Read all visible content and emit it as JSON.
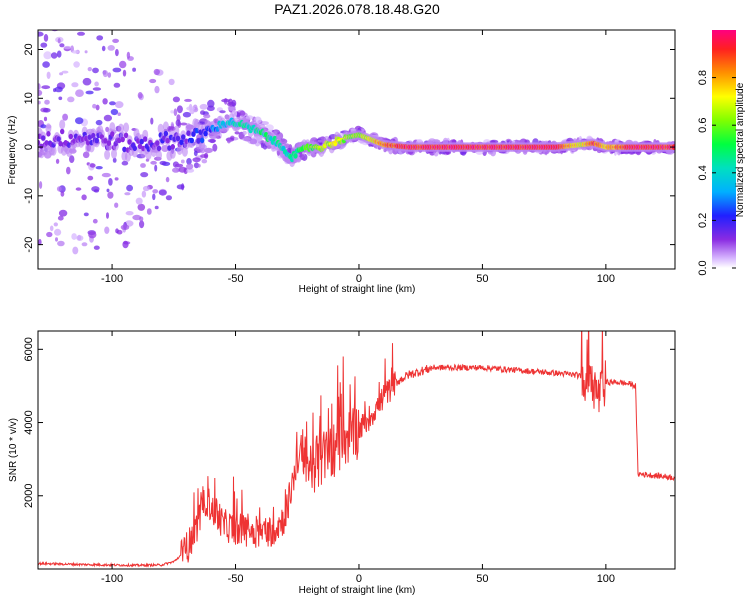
{
  "title": "PAZ1.2026.078.18.48.G20",
  "chart_data": [
    {
      "type": "heatmap",
      "xlabel": "Height of straight line (km)",
      "ylabel": "Frequency (Hz)",
      "xlim": [
        -130,
        128
      ],
      "ylim": [
        -25,
        24
      ],
      "xticks": [
        -100,
        -50,
        0,
        50,
        100
      ],
      "xtick_labels": [
        "-100",
        "-50",
        "0",
        "50",
        "100"
      ],
      "yticks": [
        -20,
        -10,
        0,
        10,
        20
      ],
      "ytick_labels": [
        "-20",
        "-10",
        "0",
        "10",
        "20"
      ],
      "colorbar": {
        "label": "Normalized spectral amplitude",
        "range": [
          0,
          1
        ],
        "ticks": [
          0.0,
          0.2,
          0.4,
          0.6,
          0.8
        ],
        "tick_labels": [
          "0.0",
          "0.2",
          "0.4",
          "0.6",
          "0.8"
        ]
      },
      "ridge_frequency": {
        "x": [
          -130,
          -110,
          -90,
          -75,
          -65,
          -58,
          -54,
          -50,
          -45,
          -40,
          -35,
          -30,
          -27,
          -24,
          -20,
          -15,
          -10,
          -5,
          0,
          5,
          10,
          20,
          40,
          60,
          80,
          90,
          95,
          100,
          110,
          128
        ],
        "y": [
          1.5,
          2,
          0.5,
          1.5,
          2,
          4,
          5,
          5,
          4,
          3,
          1.5,
          -0.5,
          -2,
          -1,
          0,
          0,
          1,
          2,
          2.5,
          1.5,
          0.5,
          0,
          0,
          0,
          0,
          0.5,
          0.8,
          0,
          0,
          0
        ]
      },
      "ridge_amplitude": {
        "x": [
          -130,
          -80,
          -70,
          -60,
          -50,
          -40,
          -30,
          -20,
          -10,
          0,
          10,
          20,
          40,
          60,
          80,
          90,
          95,
          100,
          110,
          128
        ],
        "y": [
          0.15,
          0.18,
          0.2,
          0.3,
          0.45,
          0.5,
          0.45,
          0.6,
          0.7,
          0.6,
          0.85,
          0.95,
          0.95,
          0.95,
          0.95,
          0.7,
          0.9,
          0.75,
          0.95,
          0.95
        ]
      },
      "noise_spread_hz": {
        "x": [
          -130,
          -90,
          -75,
          -65,
          -55,
          -45,
          -30,
          -20,
          0,
          128
        ],
        "y": [
          24,
          22,
          12,
          6,
          5,
          3,
          2,
          1.5,
          1.2,
          1
        ]
      }
    },
    {
      "type": "line",
      "xlabel": "Height of straight line (km)",
      "ylabel": "SNR (10 * v/v)",
      "xlim": [
        -130,
        128
      ],
      "ylim": [
        0,
        6500
      ],
      "xticks": [
        -100,
        -50,
        0,
        50,
        100
      ],
      "xtick_labels": [
        "-100",
        "-50",
        "0",
        "50",
        "100"
      ],
      "yticks": [
        2000,
        4000,
        6000
      ],
      "ytick_labels": [
        "2000",
        "4000",
        "6000"
      ],
      "color": "#ee3333",
      "series": [
        {
          "name": "SNR",
          "x": [
            -130,
            -110,
            -90,
            -80,
            -75,
            -70,
            -66,
            -62,
            -60,
            -58,
            -55,
            -50,
            -45,
            -40,
            -35,
            -30,
            -27,
            -25,
            -20,
            -15,
            -10,
            -5,
            0,
            5,
            10,
            15,
            20,
            25,
            30,
            40,
            50,
            60,
            70,
            80,
            88,
            92,
            95,
            97,
            100,
            105,
            110,
            112,
            113,
            120,
            128
          ],
          "y": [
            150,
            120,
            100,
            110,
            200,
            500,
            1100,
            1900,
            1700,
            1500,
            1200,
            1100,
            1050,
            1000,
            1050,
            1400,
            2300,
            3000,
            2800,
            3000,
            3300,
            3600,
            3800,
            4200,
            4700,
            5100,
            5300,
            5400,
            5500,
            5500,
            5500,
            5450,
            5400,
            5350,
            5300,
            5200,
            5000,
            4700,
            5100,
            5100,
            5050,
            5000,
            2600,
            2550,
            2500
          ]
        }
      ]
    }
  ]
}
